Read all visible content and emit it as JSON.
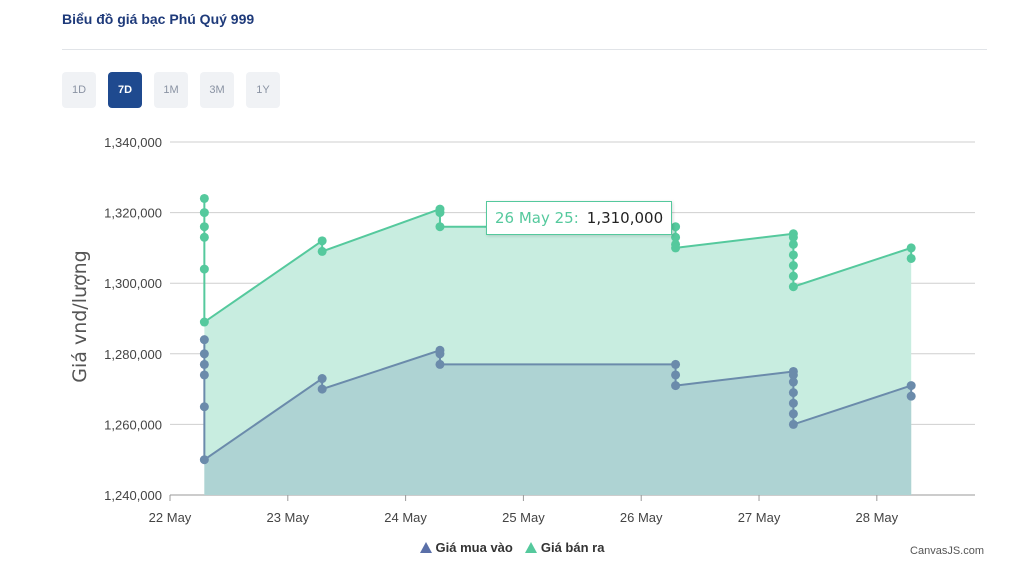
{
  "header": {
    "title": "Biểu đồ giá bạc Phú Quý 999"
  },
  "ranges": [
    {
      "label": "1D",
      "active": false
    },
    {
      "label": "7D",
      "active": true
    },
    {
      "label": "1M",
      "active": false
    },
    {
      "label": "3M",
      "active": false
    },
    {
      "label": "1Y",
      "active": false
    }
  ],
  "tooltip": {
    "label": "26 May 25:",
    "value": "1,310,000"
  },
  "credit": "CanvasJS.com",
  "chart_data": {
    "type": "area",
    "ylabel": "Giá vnd/lượng",
    "xlabel": "",
    "ylim": [
      1240000,
      1340000
    ],
    "yticks": [
      1240000,
      1260000,
      1280000,
      1300000,
      1320000,
      1340000
    ],
    "ytick_labels": [
      "1,240,000",
      "1,260,000",
      "1,280,000",
      "1,300,000",
      "1,320,000",
      "1,340,000"
    ],
    "xlim": [
      "2025-05-22",
      "2025-05-28T20:00"
    ],
    "xtick_labels": [
      {
        "date": "2025-05-22",
        "label": "22 May"
      },
      {
        "date": "2025-05-23",
        "label": "23 May"
      },
      {
        "date": "2025-05-24",
        "label": "24 May"
      },
      {
        "date": "2025-05-25",
        "label": "25 May"
      },
      {
        "date": "2025-05-26",
        "label": "26 May"
      },
      {
        "date": "2025-05-27",
        "label": "27 May"
      },
      {
        "date": "2025-05-28",
        "label": "28 May"
      }
    ],
    "grid": true,
    "legend_position": "bottom-center",
    "series": [
      {
        "name": "Giá mua vào",
        "color": "#6b8bab",
        "fill": "#aed3d3",
        "points": [
          [
            "2025-05-22T07:00",
            1284000
          ],
          [
            "2025-05-22T07:00",
            1280000
          ],
          [
            "2025-05-22T07:00",
            1277000
          ],
          [
            "2025-05-22T07:00",
            1274000
          ],
          [
            "2025-05-22T07:00",
            1265000
          ],
          [
            "2025-05-22T07:00",
            1250000
          ],
          [
            "2025-05-23T07:00",
            1273000
          ],
          [
            "2025-05-23T07:00",
            1270000
          ],
          [
            "2025-05-24T07:00",
            1281000
          ],
          [
            "2025-05-24T07:00",
            1280000
          ],
          [
            "2025-05-24T07:00",
            1277000
          ],
          [
            "2025-05-26T07:00",
            1277000
          ],
          [
            "2025-05-26T07:00",
            1274000
          ],
          [
            "2025-05-26T07:00",
            1271000
          ],
          [
            "2025-05-27T07:00",
            1275000
          ],
          [
            "2025-05-27T07:00",
            1274000
          ],
          [
            "2025-05-27T07:00",
            1272000
          ],
          [
            "2025-05-27T07:00",
            1269000
          ],
          [
            "2025-05-27T07:00",
            1266000
          ],
          [
            "2025-05-27T07:00",
            1263000
          ],
          [
            "2025-05-27T07:00",
            1260000
          ],
          [
            "2025-05-28T07:00",
            1271000
          ],
          [
            "2025-05-28T07:00",
            1268000
          ]
        ]
      },
      {
        "name": "Giá bán ra",
        "color": "#55c99d",
        "fill": "#c8ede0",
        "points": [
          [
            "2025-05-22T07:00",
            1324000
          ],
          [
            "2025-05-22T07:00",
            1320000
          ],
          [
            "2025-05-22T07:00",
            1316000
          ],
          [
            "2025-05-22T07:00",
            1313000
          ],
          [
            "2025-05-22T07:00",
            1304000
          ],
          [
            "2025-05-22T07:00",
            1289000
          ],
          [
            "2025-05-23T07:00",
            1312000
          ],
          [
            "2025-05-23T07:00",
            1309000
          ],
          [
            "2025-05-24T07:00",
            1321000
          ],
          [
            "2025-05-24T07:00",
            1320000
          ],
          [
            "2025-05-24T07:00",
            1316000
          ],
          [
            "2025-05-26T07:00",
            1316000
          ],
          [
            "2025-05-26T07:00",
            1313000
          ],
          [
            "2025-05-26T07:00",
            1311000
          ],
          [
            "2025-05-26T07:00",
            1310000
          ],
          [
            "2025-05-27T07:00",
            1314000
          ],
          [
            "2025-05-27T07:00",
            1313000
          ],
          [
            "2025-05-27T07:00",
            1311000
          ],
          [
            "2025-05-27T07:00",
            1308000
          ],
          [
            "2025-05-27T07:00",
            1305000
          ],
          [
            "2025-05-27T07:00",
            1302000
          ],
          [
            "2025-05-27T07:00",
            1299000
          ],
          [
            "2025-05-28T07:00",
            1310000
          ],
          [
            "2025-05-28T07:00",
            1307000
          ]
        ]
      }
    ]
  }
}
